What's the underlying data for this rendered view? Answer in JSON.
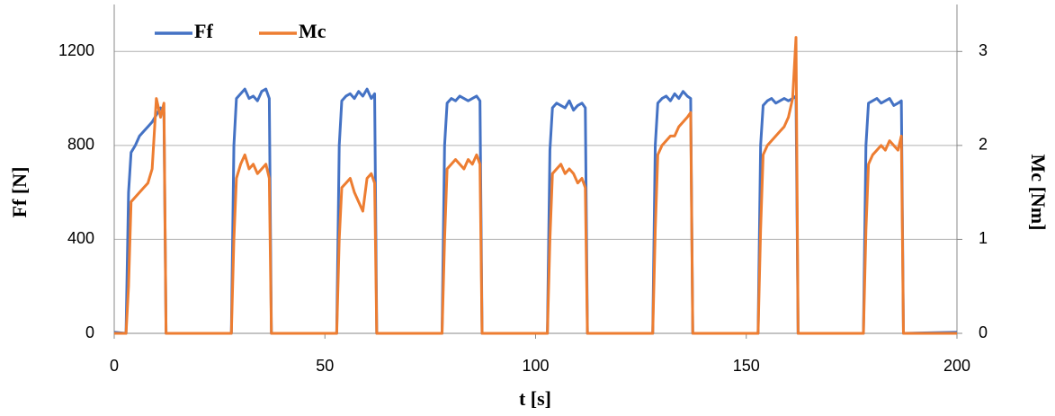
{
  "chart_data": {
    "type": "line",
    "x_label": "t [s]",
    "y_label": "Ff [N]",
    "y2_label": "Mc [Nm]",
    "x": [
      0,
      2.8,
      3.4,
      4,
      5,
      6,
      7,
      8,
      9,
      10,
      11,
      11.8,
      12.3,
      27.8,
      28.4,
      29,
      30,
      31,
      32,
      33,
      34,
      35,
      36,
      36.8,
      37.3,
      52.8,
      53.4,
      54,
      55,
      56,
      57,
      58,
      59,
      60,
      61,
      61.8,
      62.3,
      77.8,
      78.4,
      79,
      80,
      81,
      82,
      83,
      84,
      85,
      86,
      86.8,
      87.3,
      102.8,
      103.4,
      104,
      105,
      106,
      107,
      108,
      109,
      110,
      111,
      111.8,
      112.3,
      127.8,
      128.4,
      129,
      130,
      131,
      132,
      133,
      134,
      135,
      136,
      136.8,
      137.3,
      152.8,
      153.4,
      154,
      155,
      156,
      157,
      158,
      159,
      160,
      161,
      161.8,
      162.3,
      177.8,
      178.4,
      179,
      180,
      181,
      182,
      183,
      184,
      185,
      186,
      186.8,
      187.3,
      200
    ],
    "series": [
      {
        "name": "Ff",
        "color": "#4472c4",
        "axis": "y",
        "values": [
          5,
          0,
          600,
          770,
          800,
          840,
          860,
          880,
          900,
          930,
          960,
          940,
          0,
          0,
          800,
          1000,
          1020,
          1040,
          1000,
          1010,
          990,
          1030,
          1040,
          1000,
          0,
          0,
          800,
          990,
          1010,
          1020,
          1000,
          1030,
          1010,
          1040,
          1000,
          1020,
          0,
          0,
          800,
          980,
          1000,
          990,
          1010,
          1000,
          990,
          1000,
          1010,
          990,
          0,
          0,
          780,
          960,
          980,
          970,
          960,
          990,
          950,
          970,
          980,
          960,
          0,
          0,
          800,
          980,
          1000,
          1010,
          990,
          1020,
          1000,
          1030,
          1010,
          1000,
          0,
          0,
          800,
          970,
          990,
          1000,
          980,
          990,
          1000,
          990,
          1000,
          1010,
          0,
          0,
          800,
          980,
          990,
          1000,
          980,
          990,
          1000,
          970,
          980,
          990,
          0,
          5
        ]
      },
      {
        "name": "Mc",
        "color": "#ed7d31",
        "axis": "y2",
        "values": [
          0,
          0,
          0.5,
          1.4,
          1.45,
          1.5,
          1.55,
          1.6,
          1.75,
          2.5,
          2.3,
          2.45,
          0,
          0,
          1.0,
          1.65,
          1.8,
          1.9,
          1.75,
          1.8,
          1.7,
          1.75,
          1.8,
          1.65,
          0,
          0,
          1.0,
          1.55,
          1.6,
          1.65,
          1.5,
          1.4,
          1.3,
          1.65,
          1.7,
          1.6,
          0,
          0,
          1.0,
          1.75,
          1.8,
          1.85,
          1.8,
          1.75,
          1.85,
          1.8,
          1.9,
          1.8,
          0,
          0,
          1.0,
          1.7,
          1.75,
          1.8,
          1.7,
          1.75,
          1.7,
          1.6,
          1.65,
          1.55,
          0,
          0,
          1.1,
          1.9,
          2.0,
          2.05,
          2.1,
          2.1,
          2.2,
          2.25,
          2.3,
          2.35,
          0,
          0,
          1.1,
          1.9,
          2.0,
          2.05,
          2.1,
          2.15,
          2.2,
          2.3,
          2.5,
          3.15,
          0,
          0,
          1.1,
          1.8,
          1.9,
          1.95,
          2.0,
          1.95,
          2.05,
          2.0,
          1.95,
          2.1,
          0,
          0
        ]
      }
    ],
    "xlim": [
      0,
      200
    ],
    "xticks": [
      0,
      50,
      100,
      150,
      200
    ],
    "ylim": [
      0,
      1400
    ],
    "yticks": [
      0,
      400,
      800,
      1200
    ],
    "y2lim": [
      0,
      3.5
    ],
    "y2ticks": [
      0,
      1,
      2,
      3
    ],
    "grid": true
  }
}
